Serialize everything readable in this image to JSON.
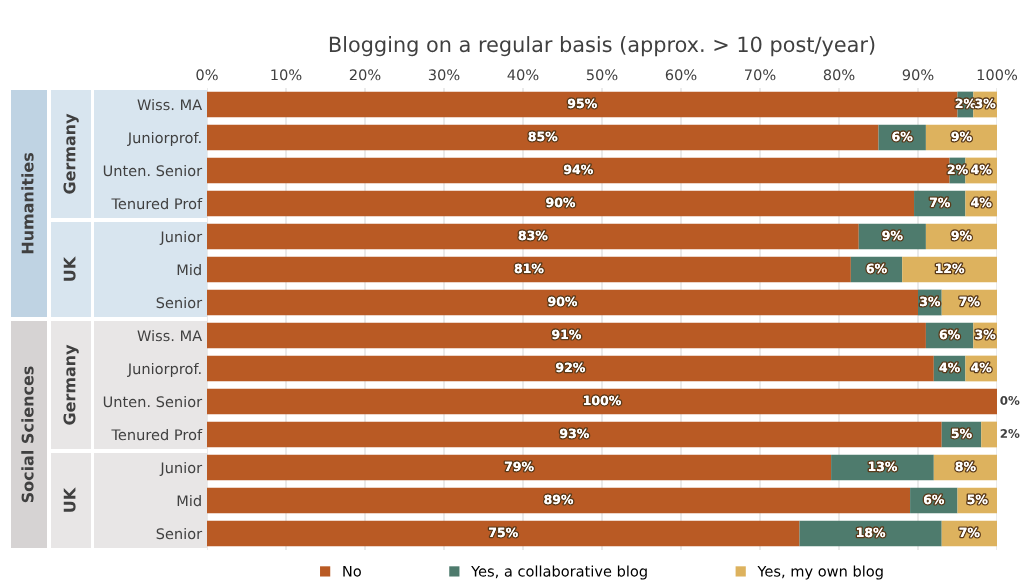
{
  "chart_data": {
    "type": "bar",
    "orientation": "horizontal",
    "stacked": true,
    "title": "Blogging on a regular basis (approx. > 10 post/year)",
    "categories": [
      "Wiss. MA",
      "Juniorprof.",
      "Unten. Senior",
      "Tenured Prof",
      "Junior",
      "Mid",
      "Senior",
      "Wiss. MA",
      "Juniorprof.",
      "Unten. Senior",
      "Tenured Prof",
      "Junior",
      "Mid",
      "Senior"
    ],
    "series": [
      {
        "name": "No",
        "color": "#b95a24",
        "values": [
          95,
          85,
          94,
          89.5,
          82.5,
          81.5,
          90,
          91,
          92,
          100,
          93,
          79,
          89,
          75
        ],
        "value_labels": [
          "95%",
          "85%",
          "94%",
          "90%",
          "83%",
          "81%",
          "90%",
          "91%",
          "92%",
          "100%",
          "93%",
          "79%",
          "89%",
          "75%"
        ]
      },
      {
        "name": "Yes, a collaborative blog",
        "color": "#4e7b6d",
        "values": [
          2,
          6,
          2,
          6.5,
          8.5,
          6.5,
          3,
          6,
          4,
          0,
          5,
          13,
          6,
          18
        ],
        "value_labels": [
          "2%",
          "6%",
          "2%",
          "7%",
          "9%",
          "6%",
          "3%",
          "6%",
          "4%",
          null,
          "5%",
          "13%",
          "6%",
          "18%"
        ]
      },
      {
        "name": "Yes, my own blog",
        "color": "#ddb25e",
        "values": [
          3,
          9,
          4,
          4,
          9,
          12,
          7,
          3,
          4,
          0,
          2,
          8,
          5,
          7
        ],
        "value_labels": [
          "3%",
          "9%",
          "4%",
          "4%",
          "9%",
          "12%",
          "7%",
          "3%",
          "4%",
          "0%",
          "2%",
          "8%",
          "5%",
          "7%"
        ]
      }
    ],
    "xlim": [
      0,
      100
    ],
    "xticks": [
      {
        "value": 0,
        "label": "0%"
      },
      {
        "value": 10,
        "label": "10%"
      },
      {
        "value": 20,
        "label": "20%"
      },
      {
        "value": 30,
        "label": "30%"
      },
      {
        "value": 40,
        "label": "40%"
      },
      {
        "value": 50,
        "label": "50%"
      },
      {
        "value": 60,
        "label": "60%"
      },
      {
        "value": 70,
        "label": "70%"
      },
      {
        "value": 80,
        "label": "80%"
      },
      {
        "value": 90,
        "label": "90%"
      },
      {
        "value": 100,
        "label": "100%"
      }
    ],
    "grid": "x",
    "legend": "bottom",
    "annotations": [
      "Humanities",
      "Social Sciences",
      "Germany",
      "UK",
      "Germany",
      "UK"
    ]
  }
}
